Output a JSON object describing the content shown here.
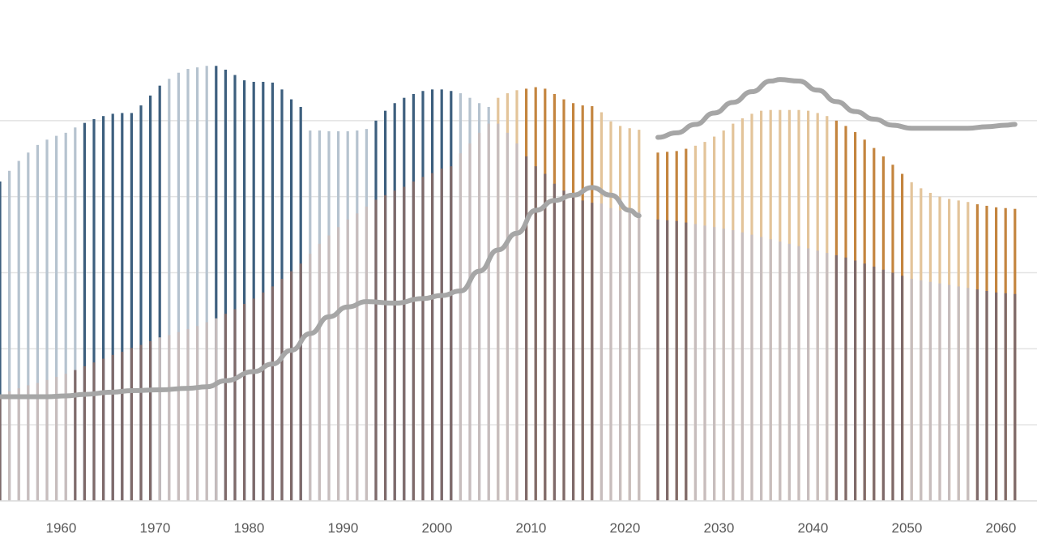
{
  "chart_data": {
    "type": "bar",
    "title": "",
    "xlabel": "",
    "ylabel": "",
    "x_ticks": [
      "1960",
      "1970",
      "1980",
      "1990",
      "2000",
      "2010",
      "2020",
      "2030",
      "2040",
      "2050",
      "2060"
    ],
    "years": [
      1953,
      1954,
      1955,
      1956,
      1957,
      1958,
      1959,
      1960,
      1961,
      1962,
      1963,
      1964,
      1965,
      1966,
      1967,
      1968,
      1969,
      1970,
      1971,
      1972,
      1973,
      1974,
      1975,
      1976,
      1977,
      1978,
      1979,
      1980,
      1981,
      1982,
      1983,
      1984,
      1985,
      1986,
      1987,
      1988,
      1989,
      1990,
      1991,
      1992,
      1993,
      1994,
      1995,
      1996,
      1997,
      1998,
      1999,
      2000,
      2001,
      2002,
      2003,
      2004,
      2005,
      2006,
      2007,
      2008,
      2009,
      2010,
      2011,
      2012,
      2013,
      2014,
      2015,
      2016,
      2017,
      2018,
      2019,
      2020,
      2021,
      2022,
      2023,
      2024,
      2025,
      2026,
      2027,
      2028,
      2029,
      2030,
      2031,
      2032,
      2033,
      2034,
      2035,
      2036,
      2037,
      2038,
      2039,
      2040,
      2041,
      2042,
      2043,
      2044,
      2045,
      2046,
      2047,
      2048,
      2049,
      2050,
      2051,
      2052,
      2053,
      2054,
      2055,
      2056,
      2057,
      2058,
      2059,
      2060,
      2061
    ],
    "ylim": [
      0,
      600
    ],
    "series": [
      {
        "role": "upper-bars",
        "values": [
          420,
          434,
          447,
          458,
          468,
          475,
          480,
          484,
          491,
          497,
          502,
          506,
          509,
          510,
          510,
          520,
          533,
          546,
          555,
          563,
          568,
          570,
          572,
          572,
          567,
          560,
          553,
          551,
          551,
          550,
          541,
          528,
          518,
          487,
          487,
          486,
          486,
          486,
          487,
          489,
          500,
          513,
          523,
          530,
          535,
          539,
          541,
          541,
          539,
          536,
          530,
          523,
          518,
          530,
          536,
          540,
          542,
          544,
          542,
          535,
          528,
          523,
          520,
          519,
          511,
          499,
          493,
          490,
          488,
          null,
          458,
          459,
          460,
          463,
          467,
          472,
          479,
          487,
          496,
          503,
          509,
          513,
          514,
          514,
          514,
          514,
          513,
          510,
          506,
          500,
          493,
          485,
          475,
          464,
          453,
          442,
          430,
          419,
          411,
          405,
          400,
          397,
          395,
          393,
          390,
          388,
          386,
          385,
          384
        ],
        "colors": [
          "#3d5f7e",
          "#b6c3cf",
          "#b6c3cf",
          "#b6c3cf",
          "#b6c3cf",
          "#b6c3cf",
          "#b6c3cf",
          "#b6c3cf",
          "#b6c3cf",
          "#3d5f7e",
          "#3d5f7e",
          "#3d5f7e",
          "#3d5f7e",
          "#3d5f7e",
          "#3d5f7e",
          "#3d5f7e",
          "#3d5f7e",
          "#3d5f7e",
          "#b6c3cf",
          "#b6c3cf",
          "#b6c3cf",
          "#b6c3cf",
          "#b6c3cf",
          "#3d5f7e",
          "#3d5f7e",
          "#3d5f7e",
          "#3d5f7e",
          "#3d5f7e",
          "#3d5f7e",
          "#3d5f7e",
          "#3d5f7e",
          "#3d5f7e",
          "#3d5f7e",
          "#b6c3cf",
          "#b6c3cf",
          "#b6c3cf",
          "#b6c3cf",
          "#b6c3cf",
          "#b6c3cf",
          "#b6c3cf",
          "#3d5f7e",
          "#3d5f7e",
          "#3d5f7e",
          "#3d5f7e",
          "#3d5f7e",
          "#3d5f7e",
          "#3d5f7e",
          "#3d5f7e",
          "#3d5f7e",
          "#b6c3cf",
          "#b6c3cf",
          "#b6c3cf",
          "#b6c3cf",
          "#e3c49a",
          "#e3c49a",
          "#e3c49a",
          "#c4853f",
          "#c4853f",
          "#c4853f",
          "#c4853f",
          "#c4853f",
          "#c4853f",
          "#c4853f",
          "#c4853f",
          "#e3c49a",
          "#e3c49a",
          "#e3c49a",
          "#e3c49a",
          "#e3c49a",
          null,
          "#c4853f",
          "#c4853f",
          "#c4853f",
          "#c4853f",
          "#e3c49a",
          "#e3c49a",
          "#e3c49a",
          "#e3c49a",
          "#e3c49a",
          "#e3c49a",
          "#e3c49a",
          "#e3c49a",
          "#e3c49a",
          "#e3c49a",
          "#e3c49a",
          "#e3c49a",
          "#e3c49a",
          "#e3c49a",
          "#e3c49a",
          "#c4853f",
          "#c4853f",
          "#c4853f",
          "#c4853f",
          "#c4853f",
          "#c4853f",
          "#c4853f",
          "#c4853f",
          "#e3c49a",
          "#e3c49a",
          "#e3c49a",
          "#e3c49a",
          "#e3c49a",
          "#e3c49a",
          "#e3c49a",
          "#c4853f",
          "#c4853f",
          "#c4853f",
          "#c4853f",
          "#c4853f"
        ]
      },
      {
        "role": "lower-bars",
        "values": [
          140,
          144,
          148,
          152,
          155,
          159,
          163,
          167,
          172,
          177,
          182,
          187,
          192,
          196,
          201,
          205,
          210,
          215,
          218,
          222,
          226,
          230,
          235,
          240,
          246,
          252,
          259,
          266,
          274,
          282,
          292,
          302,
          312,
          325,
          338,
          349,
          360,
          370,
          378,
          387,
          396,
          402,
          408,
          413,
          420,
          426,
          431,
          437,
          440,
          457,
          470,
          484,
          496,
          496,
          484,
          470,
          453,
          440,
          430,
          417,
          408,
          400,
          395,
          392,
          391,
          385,
          382,
          380,
          380,
          null,
          370,
          369,
          368,
          366,
          364,
          362,
          360,
          358,
          356,
          353,
          350,
          347,
          344,
          341,
          338,
          335,
          332,
          329,
          326,
          323,
          320,
          316,
          312,
          308,
          304,
          300,
          296,
          292,
          290,
          288,
          286,
          284,
          282,
          280,
          278,
          276,
          274,
          273,
          272
        ],
        "colors": [
          "#7f6a6a",
          "#c7bdbd",
          "#c7bdbd",
          "#c7bdbd",
          "#c7bdbd",
          "#c7bdbd",
          "#c7bdbd",
          "#c7bdbd",
          "#7f6a6a",
          "#7f6a6a",
          "#7f6a6a",
          "#7f6a6a",
          "#7f6a6a",
          "#7f6a6a",
          "#7f6a6a",
          "#7f6a6a",
          "#7f6a6a",
          "#c7bdbd",
          "#c7bdbd",
          "#c7bdbd",
          "#c7bdbd",
          "#c7bdbd",
          "#c7bdbd",
          "#c7bdbd",
          "#7f6a6a",
          "#7f6a6a",
          "#7f6a6a",
          "#7f6a6a",
          "#7f6a6a",
          "#7f6a6a",
          "#7f6a6a",
          "#7f6a6a",
          "#7f6a6a",
          "#c7bdbd",
          "#c7bdbd",
          "#c7bdbd",
          "#c7bdbd",
          "#c7bdbd",
          "#c7bdbd",
          "#c7bdbd",
          "#7f6a6a",
          "#7f6a6a",
          "#7f6a6a",
          "#7f6a6a",
          "#7f6a6a",
          "#7f6a6a",
          "#7f6a6a",
          "#7f6a6a",
          "#7f6a6a",
          "#c7bdbd",
          "#c7bdbd",
          "#c7bdbd",
          "#c7bdbd",
          "#c7bdbd",
          "#c7bdbd",
          "#c7bdbd",
          "#7f6a6a",
          "#7f6a6a",
          "#7f6a6a",
          "#7f6a6a",
          "#7f6a6a",
          "#7f6a6a",
          "#7f6a6a",
          "#7f6a6a",
          "#c7bdbd",
          "#c7bdbd",
          "#c7bdbd",
          "#c7bdbd",
          "#c7bdbd",
          null,
          "#7f6a6a",
          "#7f6a6a",
          "#7f6a6a",
          "#7f6a6a",
          "#c7bdbd",
          "#c7bdbd",
          "#c7bdbd",
          "#c7bdbd",
          "#c7bdbd",
          "#c7bdbd",
          "#c7bdbd",
          "#c7bdbd",
          "#c7bdbd",
          "#c7bdbd",
          "#c7bdbd",
          "#c7bdbd",
          "#c7bdbd",
          "#c7bdbd",
          "#c7bdbd",
          "#7f6a6a",
          "#7f6a6a",
          "#7f6a6a",
          "#7f6a6a",
          "#7f6a6a",
          "#7f6a6a",
          "#7f6a6a",
          "#7f6a6a",
          "#c7bdbd",
          "#c7bdbd",
          "#c7bdbd",
          "#c7bdbd",
          "#c7bdbd",
          "#c7bdbd",
          "#c7bdbd",
          "#7f6a6a",
          "#7f6a6a",
          "#7f6a6a",
          "#7f6a6a",
          "#7f6a6a"
        ]
      },
      {
        "type": "line",
        "color": "#a6a6a6",
        "segments": [
          {
            "x": [
              1953,
              1958,
              1960,
              1962,
              1965,
              1967,
              1970,
              1973,
              1975,
              1977,
              1980,
              1982,
              1984,
              1986,
              1988,
              1990,
              1992,
              1995,
              1998,
              2000,
              2002,
              2004,
              2006,
              2008,
              2010,
              2012,
              2014,
              2016,
              2018,
              2020,
              2021
            ],
            "y": [
              137,
              137,
              138,
              140,
              143,
              145,
              146,
              148,
              150,
              158,
              170,
              180,
              198,
              220,
              242,
              255,
              262,
              260,
              266,
              270,
              276,
              302,
              330,
              352,
              382,
              395,
              402,
              412,
              402,
              382,
              375
            ]
          },
          {
            "x": [
              2023,
              2025,
              2027,
              2029,
              2031,
              2033,
              2035,
              2036,
              2038,
              2040,
              2042,
              2044,
              2046,
              2048,
              2050,
              2052,
              2054,
              2056,
              2058,
              2060,
              2061
            ],
            "y": [
              478,
              484,
              495,
              510,
              524,
              538,
              552,
              554,
              552,
              540,
              525,
              512,
              502,
              494,
              490,
              490,
              490,
              490,
              492,
              494,
              495
            ]
          }
        ]
      }
    ],
    "grid": true,
    "legend": "none"
  }
}
